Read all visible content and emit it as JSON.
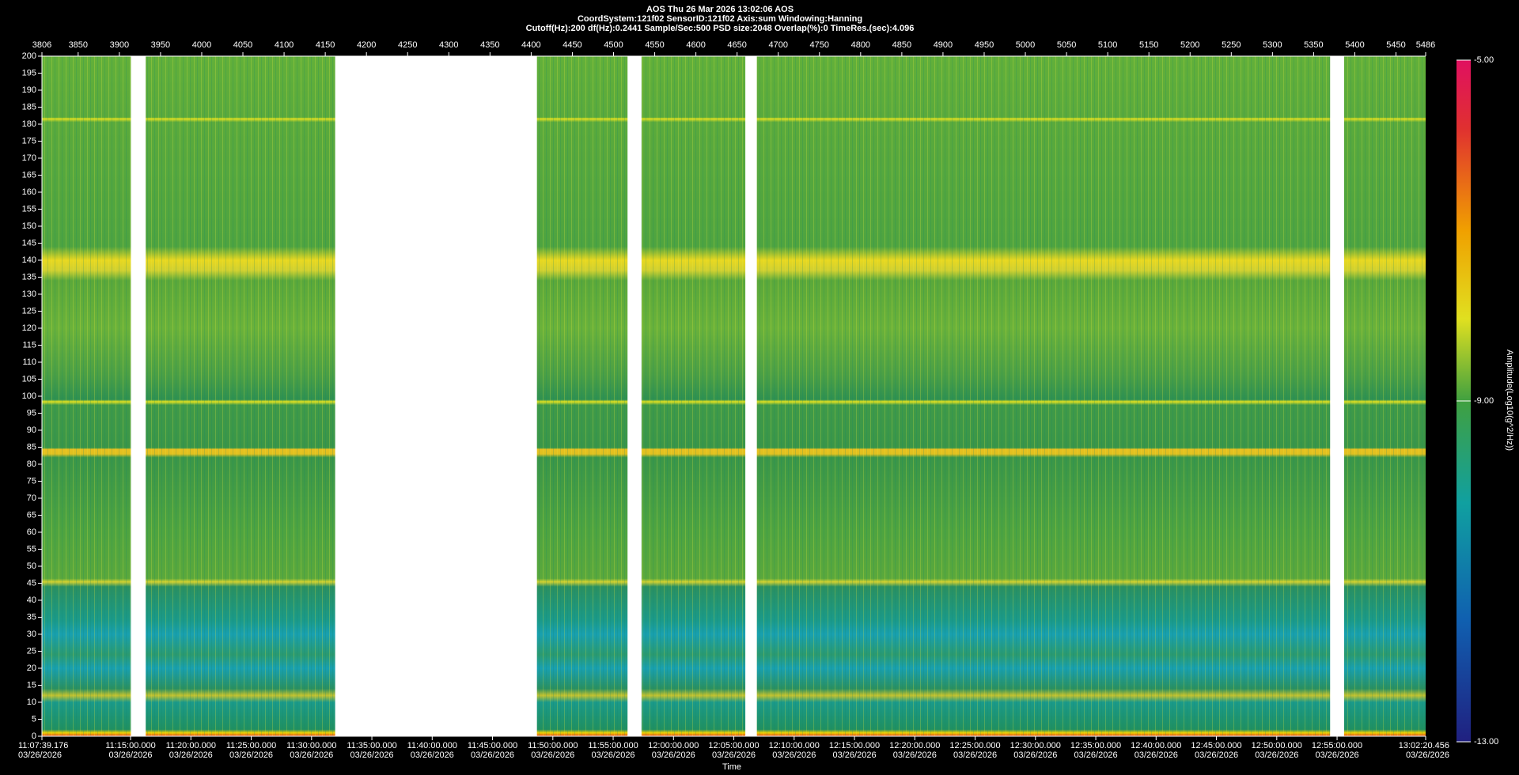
{
  "chart_data": {
    "type": "spectrogram",
    "header": [
      "AOS  Thu 26 Mar 2026 13:02:06  AOS",
      "CoordSystem:121f02   SensorID:121f02   Axis:sum   Windowing:Hanning",
      "Cutoff(Hz):200   df(Hz):0.2441   Sample/Sec:500   PSD size:2048   Overlap(%):0   TimeRes.(sec):4.096"
    ],
    "xlim": [
      3806,
      5486
    ],
    "xticks": [
      3806,
      3850,
      3900,
      3950,
      4000,
      4050,
      4100,
      4150,
      4200,
      4250,
      4300,
      4350,
      4400,
      4450,
      4500,
      4550,
      4600,
      4650,
      4700,
      4750,
      4800,
      4850,
      4900,
      4950,
      5000,
      5050,
      5100,
      5150,
      5200,
      5250,
      5300,
      5350,
      5400,
      5450,
      5486
    ],
    "ylim": [
      0,
      200
    ],
    "yticks": [
      0,
      5,
      10,
      15,
      20,
      25,
      30,
      35,
      40,
      45,
      50,
      55,
      60,
      65,
      70,
      75,
      80,
      85,
      90,
      95,
      100,
      105,
      110,
      115,
      120,
      125,
      130,
      135,
      140,
      145,
      150,
      155,
      160,
      165,
      170,
      175,
      180,
      185,
      190,
      195,
      200
    ],
    "data_segments": [
      [
        3806,
        3914
      ],
      [
        3932,
        4162
      ],
      [
        4407,
        4517
      ],
      [
        4534,
        4660
      ],
      [
        4674,
        5370
      ],
      [
        5387,
        5486
      ]
    ],
    "time_ticks": [
      {
        "time": "11:07:39.176",
        "date": "03/26/2026"
      },
      {
        "time": "11:15:00.000",
        "date": "03/26/2026"
      },
      {
        "time": "11:20:00.000",
        "date": "03/26/2026"
      },
      {
        "time": "11:25:00.000",
        "date": "03/26/2026"
      },
      {
        "time": "11:30:00.000",
        "date": "03/26/2026"
      },
      {
        "time": "11:35:00.000",
        "date": "03/26/2026"
      },
      {
        "time": "11:40:00.000",
        "date": "03/26/2026"
      },
      {
        "time": "11:45:00.000",
        "date": "03/26/2026"
      },
      {
        "time": "11:50:00.000",
        "date": "03/26/2026"
      },
      {
        "time": "11:55:00.000",
        "date": "03/26/2026"
      },
      {
        "time": "12:00:00.000",
        "date": "03/26/2026"
      },
      {
        "time": "12:05:00.000",
        "date": "03/26/2026"
      },
      {
        "time": "12:10:00.000",
        "date": "03/26/2026"
      },
      {
        "time": "12:15:00.000",
        "date": "03/26/2026"
      },
      {
        "time": "12:20:00.000",
        "date": "03/26/2026"
      },
      {
        "time": "12:25:00.000",
        "date": "03/26/2026"
      },
      {
        "time": "12:30:00.000",
        "date": "03/26/2026"
      },
      {
        "time": "12:35:00.000",
        "date": "03/26/2026"
      },
      {
        "time": "12:40:00.000",
        "date": "03/26/2026"
      },
      {
        "time": "12:45:00.000",
        "date": "03/26/2026"
      },
      {
        "time": "12:50:00.000",
        "date": "03/26/2026"
      },
      {
        "time": "12:55:00.000",
        "date": "03/26/2026"
      },
      {
        "time": "13:02:20.456",
        "date": "03/26/2026"
      }
    ],
    "xlabel": "Time",
    "zlim": [
      -13,
      -5
    ],
    "zticks": [
      {
        "value": -5,
        "label": "-5.00"
      },
      {
        "value": -9,
        "label": "-9.00"
      },
      {
        "value": -13,
        "label": "-13.00"
      }
    ],
    "zlabel": "Amplitude(Log10(g^2/Hz))"
  }
}
